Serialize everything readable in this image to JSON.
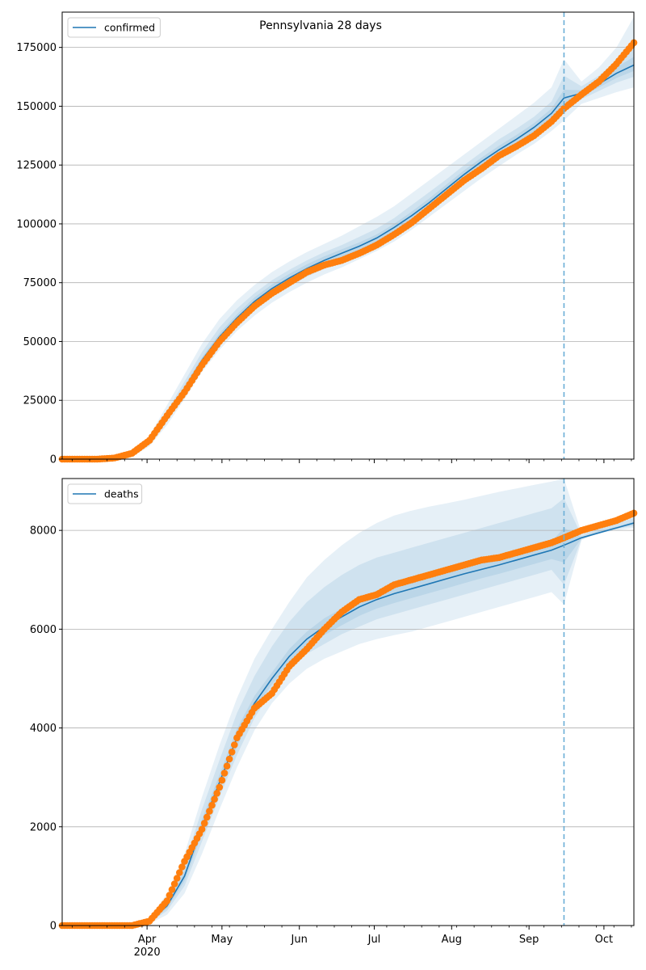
{
  "chart_data": [
    {
      "type": "line",
      "title": "Pennsylvania 28 days",
      "x_axis": {
        "type": "date",
        "range": [
          "2020-02-27",
          "2020-10-13"
        ],
        "major_ticks": [
          {
            "date": "2020-04-01",
            "label": "Apr",
            "sublabel": "2020"
          },
          {
            "date": "2020-05-01",
            "label": "May"
          },
          {
            "date": "2020-06-01",
            "label": "Jun"
          },
          {
            "date": "2020-07-01",
            "label": "Jul"
          },
          {
            "date": "2020-08-01",
            "label": "Aug"
          },
          {
            "date": "2020-09-01",
            "label": "Sep"
          },
          {
            "date": "2020-10-01",
            "label": "Oct"
          }
        ],
        "tick_labels_shown": false
      },
      "y_axis": {
        "range": [
          0,
          190000
        ],
        "ticks": [
          0,
          25000,
          50000,
          75000,
          100000,
          125000,
          150000,
          175000
        ],
        "tick_labels": [
          "0",
          "25000",
          "50000",
          "75000",
          "100000",
          "125000",
          "150000",
          "175000"
        ]
      },
      "grid": "horizontal",
      "legend": {
        "placement": "top-left",
        "entries": [
          "confirmed"
        ]
      },
      "forecast_start": "2020-09-15",
      "colors": {
        "model": "#1f77b4",
        "observed": "#ff7f0e",
        "band": "#1f77b4"
      },
      "series": [
        {
          "name": "confirmed",
          "kind": "model",
          "x": [
            "2020-02-27",
            "2020-03-05",
            "2020-03-12",
            "2020-03-19",
            "2020-03-26",
            "2020-04-02",
            "2020-04-09",
            "2020-04-16",
            "2020-04-23",
            "2020-04-30",
            "2020-05-07",
            "2020-05-14",
            "2020-05-21",
            "2020-05-28",
            "2020-06-04",
            "2020-06-11",
            "2020-06-18",
            "2020-06-25",
            "2020-07-02",
            "2020-07-09",
            "2020-07-16",
            "2020-07-23",
            "2020-07-30",
            "2020-08-06",
            "2020-08-13",
            "2020-08-20",
            "2020-08-27",
            "2020-09-03",
            "2020-09-10",
            "2020-09-15",
            "2020-09-22",
            "2020-09-29",
            "2020-10-06",
            "2020-10-13"
          ],
          "y": [
            0,
            0,
            0,
            0,
            1500,
            7500,
            18000,
            30000,
            42000,
            52000,
            60000,
            67000,
            72500,
            77000,
            81000,
            84500,
            87500,
            90500,
            94000,
            98500,
            103500,
            109000,
            115000,
            121000,
            126500,
            131500,
            136000,
            141000,
            147000,
            153500,
            155500,
            159500,
            164000,
            167500
          ],
          "bands": [
            {
              "lower": [
                0,
                0,
                0,
                0,
                1000,
                5500,
                14500,
                25500,
                37000,
                46500,
                54500,
                61000,
                66500,
                71000,
                75000,
                78500,
                81500,
                85000,
                88500,
                92500,
                97500,
                103000,
                108500,
                114000,
                119500,
                124500,
                129500,
                134000,
                139500,
                144000,
                151000,
                153500,
                156000,
                158000
              ],
              "upper": [
                0,
                0,
                0,
                0,
                2200,
                10000,
                23000,
                36000,
                49000,
                59500,
                67500,
                74000,
                79500,
                84000,
                88000,
                91500,
                95000,
                99000,
                103000,
                107500,
                113000,
                118500,
                124000,
                129500,
                135000,
                140500,
                146000,
                151500,
                158000,
                170000,
                160500,
                166500,
                175000,
                188000
              ]
            },
            {
              "lower": [
                0,
                0,
                0,
                0,
                1200,
                6500,
                16000,
                27500,
                39500,
                49000,
                57000,
                63500,
                69000,
                73500,
                77500,
                81000,
                84000,
                87500,
                91000,
                95500,
                100000,
                105500,
                111500,
                117500,
                123000,
                128000,
                132500,
                137500,
                143000,
                148000,
                153000,
                156500,
                160000,
                162500
              ],
              "upper": [
                0,
                0,
                0,
                0,
                1900,
                8700,
                20500,
                33000,
                45500,
                56000,
                64000,
                70500,
                76000,
                80500,
                84500,
                88000,
                91000,
                94500,
                98000,
                102500,
                108000,
                113500,
                119000,
                125000,
                130500,
                136000,
                140500,
                145500,
                152000,
                163000,
                158500,
                163000,
                169500,
                178000
              ]
            },
            {
              "lower": [
                0,
                0,
                0,
                0,
                1350,
                7000,
                17000,
                28800,
                40800,
                50500,
                58500,
                65300,
                70800,
                75200,
                79200,
                82800,
                85800,
                88900,
                92500,
                97000,
                101800,
                107200,
                113200,
                119200,
                124800,
                129800,
                134200,
                139200,
                145000,
                150500,
                154300,
                158000,
                162000,
                165000
              ],
              "upper": [
                0,
                0,
                0,
                0,
                1650,
                8000,
                19000,
                31200,
                43200,
                53500,
                61500,
                68700,
                74200,
                78800,
                82800,
                86200,
                89200,
                92100,
                95500,
                100000,
                105200,
                110800,
                116800,
                122800,
                128200,
                133200,
                137800,
                142800,
                149000,
                157000,
                156800,
                161200,
                166500,
                171000
              ]
            }
          ]
        },
        {
          "name": "",
          "kind": "observed",
          "x": [
            "2020-02-27",
            "2020-03-05",
            "2020-03-12",
            "2020-03-19",
            "2020-03-26",
            "2020-04-02",
            "2020-04-09",
            "2020-04-16",
            "2020-04-23",
            "2020-04-30",
            "2020-05-07",
            "2020-05-14",
            "2020-05-21",
            "2020-05-28",
            "2020-06-04",
            "2020-06-11",
            "2020-06-18",
            "2020-06-25",
            "2020-07-02",
            "2020-07-09",
            "2020-07-16",
            "2020-07-23",
            "2020-07-30",
            "2020-08-06",
            "2020-08-13",
            "2020-08-20",
            "2020-08-27",
            "2020-09-03",
            "2020-09-10",
            "2020-09-15",
            "2020-09-22",
            "2020-09-29",
            "2020-10-06",
            "2020-10-13"
          ],
          "y": [
            0,
            0,
            0,
            500,
            2500,
            8000,
            18500,
            28500,
            40000,
            50000,
            58000,
            65000,
            70500,
            75000,
            79500,
            82500,
            84500,
            87500,
            91000,
            95500,
            100500,
            106500,
            112500,
            118500,
            123500,
            129000,
            133000,
            137500,
            143500,
            149000,
            155000,
            160500,
            168000,
            177000
          ]
        }
      ]
    },
    {
      "type": "line",
      "title": "",
      "x_axis": {
        "type": "date",
        "range": [
          "2020-02-27",
          "2020-10-13"
        ],
        "major_ticks": [
          {
            "date": "2020-04-01",
            "label": "Apr",
            "sublabel": "2020"
          },
          {
            "date": "2020-05-01",
            "label": "May"
          },
          {
            "date": "2020-06-01",
            "label": "Jun"
          },
          {
            "date": "2020-07-01",
            "label": "Jul"
          },
          {
            "date": "2020-08-01",
            "label": "Aug"
          },
          {
            "date": "2020-09-01",
            "label": "Sep"
          },
          {
            "date": "2020-10-01",
            "label": "Oct"
          }
        ],
        "tick_labels_shown": true
      },
      "y_axis": {
        "range": [
          0,
          9050
        ],
        "ticks": [
          0,
          2000,
          4000,
          6000,
          8000
        ],
        "tick_labels": [
          "0",
          "2000",
          "4000",
          "6000",
          "8000"
        ]
      },
      "grid": "horizontal",
      "legend": {
        "placement": "top-left",
        "entries": [
          "deaths"
        ]
      },
      "forecast_start": "2020-09-15",
      "colors": {
        "model": "#1f77b4",
        "observed": "#ff7f0e",
        "band": "#1f77b4"
      },
      "series": [
        {
          "name": "deaths",
          "kind": "model",
          "x": [
            "2020-02-27",
            "2020-03-05",
            "2020-03-12",
            "2020-03-19",
            "2020-03-26",
            "2020-04-02",
            "2020-04-09",
            "2020-04-16",
            "2020-04-23",
            "2020-04-30",
            "2020-05-07",
            "2020-05-14",
            "2020-05-21",
            "2020-05-28",
            "2020-06-04",
            "2020-06-11",
            "2020-06-18",
            "2020-06-25",
            "2020-07-02",
            "2020-07-09",
            "2020-07-16",
            "2020-07-23",
            "2020-07-30",
            "2020-08-06",
            "2020-08-13",
            "2020-08-20",
            "2020-08-27",
            "2020-09-03",
            "2020-09-10",
            "2020-09-15",
            "2020-09-22",
            "2020-09-29",
            "2020-10-06",
            "2020-10-13"
          ],
          "y": [
            0,
            0,
            0,
            0,
            0,
            80,
            400,
            1000,
            2000,
            2900,
            3800,
            4500,
            5000,
            5450,
            5800,
            6050,
            6250,
            6450,
            6600,
            6720,
            6820,
            6920,
            7020,
            7120,
            7210,
            7300,
            7400,
            7500,
            7600,
            7700,
            7850,
            7950,
            8050,
            8150
          ],
          "bands": [
            {
              "lower": [
                0,
                0,
                0,
                0,
                0,
                40,
                220,
                650,
                1450,
                2350,
                3200,
                3950,
                4500,
                4900,
                5200,
                5400,
                5550,
                5700,
                5800,
                5880,
                5950,
                6050,
                6150,
                6250,
                6350,
                6450,
                6550,
                6650,
                6750,
                6500,
                7800,
                7950,
                8000,
                8050
              ],
              "upper": [
                0,
                0,
                0,
                0,
                0,
                140,
                650,
                1450,
                2600,
                3650,
                4600,
                5400,
                6000,
                6550,
                7050,
                7400,
                7700,
                7950,
                8150,
                8300,
                8400,
                8480,
                8550,
                8620,
                8700,
                8780,
                8850,
                8920,
                8990,
                9050,
                7950,
                8100,
                8200,
                8300
              ]
            },
            {
              "lower": [
                0,
                0,
                0,
                0,
                0,
                55,
                300,
                800,
                1700,
                2600,
                3450,
                4200,
                4750,
                5150,
                5500,
                5700,
                5900,
                6050,
                6200,
                6300,
                6400,
                6500,
                6600,
                6700,
                6800,
                6900,
                7000,
                7100,
                7200,
                6900,
                7820,
                7970,
                8030,
                8090
              ],
              "upper": [
                0,
                0,
                0,
                0,
                0,
                115,
                530,
                1250,
                2350,
                3350,
                4300,
                5050,
                5650,
                6150,
                6550,
                6850,
                7100,
                7300,
                7450,
                7550,
                7650,
                7750,
                7850,
                7950,
                8050,
                8150,
                8250,
                8350,
                8450,
                8650,
                7900,
                8050,
                8150,
                8250
              ]
            },
            {
              "lower": [
                0,
                0,
                0,
                0,
                0,
                65,
                350,
                900,
                1850,
                2750,
                3620,
                4350,
                4880,
                5300,
                5650,
                5880,
                6080,
                6270,
                6420,
                6530,
                6630,
                6730,
                6830,
                6930,
                7030,
                7120,
                7220,
                7320,
                7420,
                7350,
                7835,
                7960,
                8045,
                8120
              ],
              "upper": [
                0,
                0,
                0,
                0,
                0,
                95,
                450,
                1100,
                2150,
                3050,
                3980,
                4650,
                5120,
                5600,
                5950,
                6220,
                6420,
                6630,
                6780,
                6910,
                7010,
                7110,
                7210,
                7310,
                7390,
                7480,
                7580,
                7680,
                7780,
                8050,
                7865,
                7990,
                8075,
                8180
              ]
            }
          ]
        },
        {
          "name": "",
          "kind": "observed",
          "x": [
            "2020-02-27",
            "2020-03-05",
            "2020-03-12",
            "2020-03-19",
            "2020-03-26",
            "2020-04-02",
            "2020-04-09",
            "2020-04-16",
            "2020-04-23",
            "2020-04-30",
            "2020-05-07",
            "2020-05-14",
            "2020-05-21",
            "2020-05-28",
            "2020-06-04",
            "2020-06-11",
            "2020-06-18",
            "2020-06-25",
            "2020-07-02",
            "2020-07-09",
            "2020-07-16",
            "2020-07-23",
            "2020-07-30",
            "2020-08-06",
            "2020-08-13",
            "2020-08-20",
            "2020-08-27",
            "2020-09-03",
            "2020-09-10",
            "2020-09-15",
            "2020-09-22",
            "2020-09-29",
            "2020-10-06",
            "2020-10-13"
          ],
          "y": [
            0,
            0,
            0,
            0,
            0,
            90,
            500,
            1300,
            1950,
            2800,
            3800,
            4400,
            4700,
            5250,
            5600,
            6000,
            6350,
            6600,
            6700,
            6900,
            7000,
            7100,
            7200,
            7300,
            7400,
            7450,
            7550,
            7650,
            7750,
            7850,
            8000,
            8100,
            8200,
            8350
          ]
        }
      ]
    }
  ]
}
